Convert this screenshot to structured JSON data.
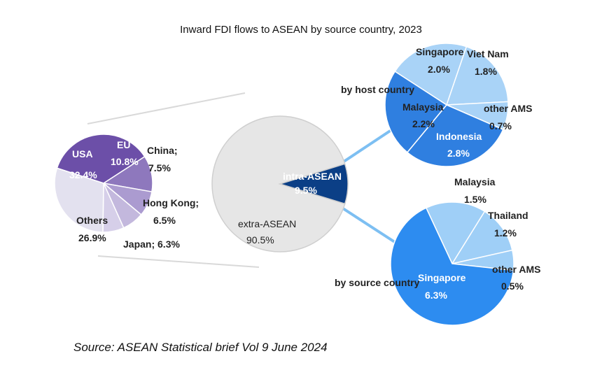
{
  "title": "Inward FDI flows to ASEAN by source country, 2023",
  "source": "Source: ASEAN Statistical brief Vol 9 June 2024",
  "colors": {
    "usa": "#6c4fa8",
    "eu": "#8e78bd",
    "china": "#ab9bd0",
    "hongkong": "#c3b8dd",
    "japan": "#d6cfe9",
    "others": "#e3e1ef",
    "extra": "#e6e6e6",
    "intra": "#0b3f86",
    "host_base": "#2f7fe0",
    "host_light": "#a9d3f7",
    "host_mid": "#7ab9f0",
    "src_base": "#2d8cf0",
    "src_light": "#9fcff7"
  },
  "chart_data": [
    {
      "type": "pie",
      "name": "by source country (all)",
      "labels": [
        "USA",
        "EU",
        "China",
        "Hong Kong",
        "Japan",
        "Others"
      ],
      "display_labels": [
        "USA",
        "EU",
        "China;",
        "Hong Kong;",
        "Japan; 6.3%",
        "Others"
      ],
      "value_labels": [
        "32.4%",
        "10.8%",
        "7.5%",
        "6.5%",
        "",
        "26.9%"
      ],
      "values": [
        32.4,
        10.8,
        7.5,
        6.5,
        6.3,
        26.9
      ]
    },
    {
      "type": "pie",
      "name": "extra vs intra ASEAN",
      "labels": [
        "extra-ASEAN",
        "intra-ASEAN"
      ],
      "display_labels": [
        "extra-ASEAN",
        "intra-ASEAN"
      ],
      "value_labels": [
        "90.5%",
        "9.5%"
      ],
      "values": [
        90.5,
        9.5
      ]
    },
    {
      "type": "pie",
      "name": "by host country",
      "caption": "by host country",
      "labels": [
        "Singapore",
        "Viet Nam",
        "other AMS",
        "Indonesia",
        "Malaysia"
      ],
      "value_labels": [
        "2.0%",
        "1.8%",
        "0.7%",
        "2.8%",
        "2.2%"
      ],
      "values": [
        2.0,
        1.8,
        0.7,
        2.8,
        2.2
      ]
    },
    {
      "type": "pie",
      "name": "by source country (intra-ASEAN)",
      "caption": "by source country",
      "labels": [
        "Malaysia",
        "Thailand",
        "other AMS",
        "Singapore"
      ],
      "value_labels": [
        "1.5%",
        "1.2%",
        "0.5%",
        "6.3%"
      ],
      "values": [
        1.5,
        1.2,
        0.5,
        6.3
      ]
    }
  ]
}
